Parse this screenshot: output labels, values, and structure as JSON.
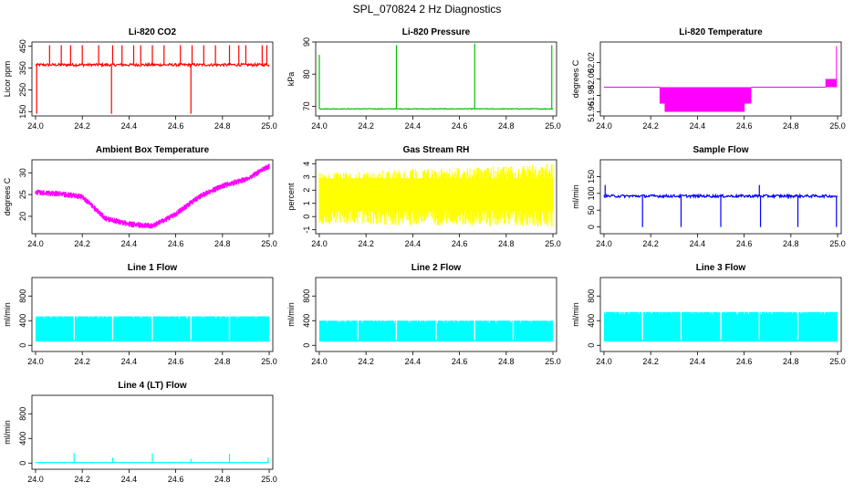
{
  "figure": {
    "title": "SPL_070824  2 Hz Diagnostics"
  },
  "chart_data": [
    {
      "id": "co2",
      "type": "line",
      "title": "Li-820 CO2",
      "xlabel": "",
      "ylabel": "Licor ppm",
      "color": "#ff0000",
      "x": [
        24.0,
        25.0
      ],
      "xlim": [
        24.0,
        25.0
      ],
      "ylim": [
        130,
        470
      ],
      "xticks": [
        "24.0",
        "24.2",
        "24.4",
        "24.6",
        "24.8",
        "25.0"
      ],
      "yticks": [
        150,
        250,
        350,
        450
      ],
      "ytick_labels": [
        "150",
        "250",
        "350",
        "450"
      ],
      "baseline": 365,
      "noise": 6,
      "spikes": [
        [
          24.005,
          140
        ],
        [
          24.06,
          455
        ],
        [
          24.11,
          455
        ],
        [
          24.15,
          455
        ],
        [
          24.2,
          455
        ],
        [
          24.27,
          455
        ],
        [
          24.325,
          140
        ],
        [
          24.33,
          455
        ],
        [
          24.37,
          455
        ],
        [
          24.42,
          455
        ],
        [
          24.45,
          455
        ],
        [
          24.5,
          455
        ],
        [
          24.55,
          455
        ],
        [
          24.62,
          455
        ],
        [
          24.665,
          140
        ],
        [
          24.67,
          455
        ],
        [
          24.72,
          455
        ],
        [
          24.77,
          455
        ],
        [
          24.83,
          455
        ],
        [
          24.87,
          455
        ],
        [
          24.9,
          455
        ],
        [
          24.97,
          455
        ],
        [
          24.99,
          455
        ]
      ]
    },
    {
      "id": "pressure",
      "type": "line",
      "title": "Li-820 Pressure",
      "xlabel": "",
      "ylabel": "kPa",
      "color": "#00c000",
      "x": [
        24.0,
        25.0
      ],
      "xlim": [
        24.0,
        25.0
      ],
      "ylim": [
        67,
        90
      ],
      "xticks": [
        "24.0",
        "24.2",
        "24.4",
        "24.6",
        "24.8",
        "25.0"
      ],
      "yticks": [
        70,
        80,
        90
      ],
      "ytick_labels": [
        "70",
        "80",
        "90"
      ],
      "baseline": 69.2,
      "noise": 0.1,
      "spikes": [
        [
          24.0,
          86
        ],
        [
          24.33,
          89
        ],
        [
          24.665,
          89.5
        ],
        [
          24.995,
          89
        ]
      ]
    },
    {
      "id": "temperature",
      "type": "line",
      "title": "Li-820 Temperature",
      "xlabel": "",
      "ylabel": "degrees C",
      "color": "#ff00ff",
      "x": [
        24.0,
        25.0
      ],
      "xlim": [
        24.0,
        25.0
      ],
      "ylim": [
        51.955,
        52.045
      ],
      "xticks": [
        "24.0",
        "24.2",
        "24.4",
        "24.6",
        "24.8",
        "25.0"
      ],
      "yticks": [
        51.96,
        51.98,
        52.0,
        52.02
      ],
      "ytick_labels": [
        "51.96",
        "51.98",
        "52.00",
        "52.02"
      ],
      "baseline": 51.99,
      "low": 51.96,
      "high": 52.0,
      "top": 52.04,
      "low_band": [
        24.24,
        24.63
      ],
      "high_band": [
        24.95,
        24.995
      ]
    },
    {
      "id": "ambient",
      "type": "line",
      "title": "Ambient Box Temperature",
      "xlabel": "",
      "ylabel": "degrees C",
      "color": "#ff00ff",
      "x": [
        24.0,
        25.0
      ],
      "xlim": [
        24.0,
        25.0
      ],
      "ylim": [
        16,
        33
      ],
      "xticks": [
        "24.0",
        "24.2",
        "24.4",
        "24.6",
        "24.8",
        "25.0"
      ],
      "yticks": [
        20,
        25,
        30
      ],
      "ytick_labels": [
        "20",
        "25",
        "30"
      ],
      "trend_x": [
        24.0,
        24.1,
        24.2,
        24.3,
        24.4,
        24.5,
        24.6,
        24.7,
        24.8,
        24.9,
        25.0
      ],
      "trend_y": [
        25.5,
        25.2,
        24.5,
        19.5,
        18.2,
        17.8,
        20.5,
        24.5,
        27.0,
        28.5,
        31.5
      ],
      "noise": 0.7
    },
    {
      "id": "rh",
      "type": "line",
      "title": "Gas Stream RH",
      "xlabel": "",
      "ylabel": "percent",
      "color": "#ffff00",
      "x": [
        24.0,
        25.0
      ],
      "xlim": [
        24.0,
        25.0
      ],
      "ylim": [
        -1.3,
        4.3
      ],
      "xticks": [
        "24.0",
        "24.2",
        "24.4",
        "24.6",
        "24.8",
        "25.0"
      ],
      "yticks": [
        -1,
        0,
        1,
        2,
        3,
        4
      ],
      "ytick_labels": [
        "-1",
        "0",
        "1",
        "2",
        "3",
        "4"
      ],
      "band_low_start": -0.6,
      "band_high_start": 3.3,
      "band_low_end": -0.8,
      "band_high_end": 4.0
    },
    {
      "id": "sample",
      "type": "line",
      "title": "Sample Flow",
      "xlabel": "",
      "ylabel": "ml/min",
      "color": "#0000ff",
      "x": [
        24.0,
        25.0
      ],
      "xlim": [
        24.0,
        25.0
      ],
      "ylim": [
        -20,
        200
      ],
      "xticks": [
        "24.0",
        "24.2",
        "24.4",
        "24.6",
        "24.8",
        "25.0"
      ],
      "yticks": [
        0,
        50,
        100,
        150
      ],
      "ytick_labels": [
        "0",
        "50",
        "100",
        "150"
      ],
      "baseline": 92,
      "noise": 4,
      "spikes": [
        [
          24.005,
          125
        ],
        [
          24.165,
          0
        ],
        [
          24.33,
          0
        ],
        [
          24.5,
          0
        ],
        [
          24.665,
          125
        ],
        [
          24.67,
          0
        ],
        [
          24.83,
          0
        ],
        [
          24.995,
          0
        ]
      ]
    },
    {
      "id": "line1",
      "type": "area",
      "title": "Line 1 Flow",
      "xlabel": "",
      "ylabel": "ml/min",
      "color": "#00ffff",
      "x": [
        24.0,
        25.0
      ],
      "xlim": [
        24.0,
        25.0
      ],
      "ylim": [
        -100,
        1100
      ],
      "xticks": [
        "24.0",
        "24.2",
        "24.4",
        "24.6",
        "24.8",
        "25.0"
      ],
      "yticks": [
        0,
        400,
        800
      ],
      "ytick_labels": [
        "0",
        "400",
        "800"
      ],
      "low": 60,
      "high": 470,
      "gaps": [
        24.165,
        24.33,
        24.5,
        24.665,
        24.83
      ]
    },
    {
      "id": "line2",
      "type": "area",
      "title": "Line 2 Flow",
      "xlabel": "",
      "ylabel": "ml/min",
      "color": "#00ffff",
      "x": [
        24.0,
        25.0
      ],
      "xlim": [
        24.0,
        25.0
      ],
      "ylim": [
        -100,
        1100
      ],
      "xticks": [
        "24.0",
        "24.2",
        "24.4",
        "24.6",
        "24.8",
        "25.0"
      ],
      "yticks": [
        0,
        400,
        800
      ],
      "ytick_labels": [
        "0",
        "400",
        "800"
      ],
      "low": 60,
      "high": 400,
      "gaps": [
        24.165,
        24.33,
        24.5,
        24.665,
        24.83
      ]
    },
    {
      "id": "line3",
      "type": "area",
      "title": "Line 3 Flow",
      "xlabel": "",
      "ylabel": "ml/min",
      "color": "#00ffff",
      "x": [
        24.0,
        25.0
      ],
      "xlim": [
        24.0,
        25.0
      ],
      "ylim": [
        -100,
        1100
      ],
      "xticks": [
        "24.0",
        "24.2",
        "24.4",
        "24.6",
        "24.8",
        "25.0"
      ],
      "yticks": [
        0,
        400,
        800
      ],
      "ytick_labels": [
        "0",
        "400",
        "800"
      ],
      "low": 60,
      "high": 540,
      "gaps": [
        24.165,
        24.33,
        24.5,
        24.665,
        24.83
      ]
    },
    {
      "id": "line4",
      "type": "line",
      "title": "Line 4 (LT) Flow",
      "xlabel": "",
      "ylabel": "ml/min",
      "color": "#00ffff",
      "x": [
        24.0,
        25.0
      ],
      "xlim": [
        24.0,
        25.0
      ],
      "ylim": [
        -100,
        1100
      ],
      "xticks": [
        "24.0",
        "24.2",
        "24.4",
        "24.6",
        "24.8",
        "25.0"
      ],
      "yticks": [
        0,
        400,
        800
      ],
      "ytick_labels": [
        "0",
        "400",
        "800"
      ],
      "baseline": 10,
      "noise": 3,
      "spikes": [
        [
          24.165,
          160
        ],
        [
          24.33,
          90
        ],
        [
          24.5,
          160
        ],
        [
          24.665,
          70
        ],
        [
          24.83,
          150
        ],
        [
          24.995,
          90
        ]
      ]
    }
  ]
}
